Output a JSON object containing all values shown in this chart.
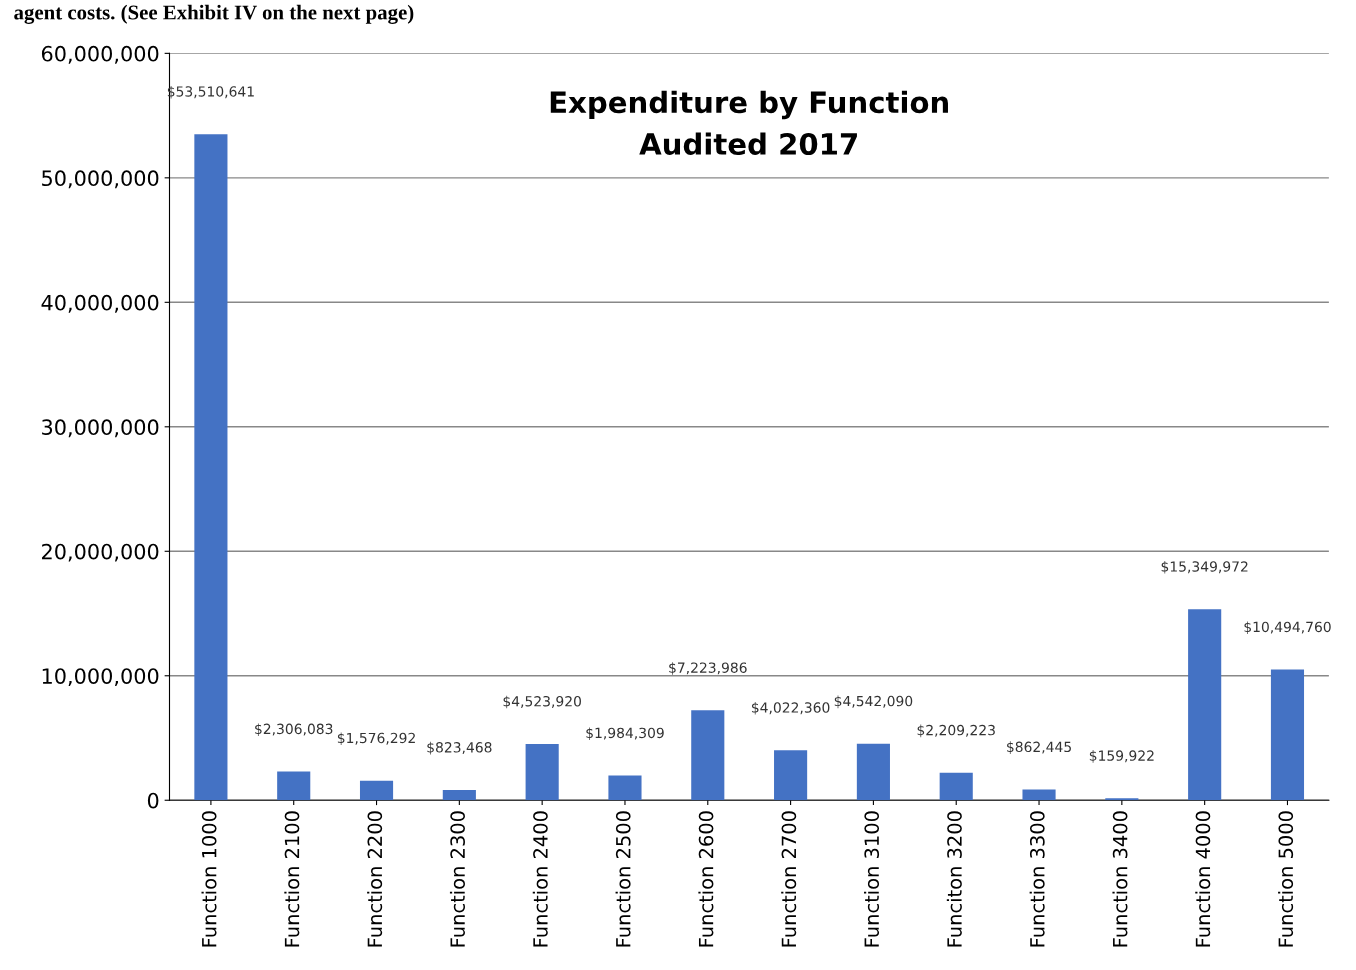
{
  "chart_data": {
    "type": "bar",
    "title": "Expenditure by Function\nAudited 2017",
    "categories": [
      "Function 1000",
      "Function 2100",
      "Function 2200",
      "Function 2300",
      "Function 2400",
      "Function 2500",
      "Function 2600",
      "Function 2700",
      "Function 3100",
      "Funciton 3200",
      "Function 3300",
      "Function 3400",
      "Function 4000",
      "Function 5000"
    ],
    "values": [
      53510641,
      2306083,
      1576292,
      823468,
      4523920,
      1984309,
      7223986,
      4022360,
      4542090,
      2209223,
      862445,
      159922,
      15349972,
      10494760
    ],
    "value_labels": [
      "$53,510,641",
      "$2,306,083",
      "$1,576,292",
      "$823,468",
      "$4,523,920",
      "$1,984,309",
      "$7,223,986",
      "$4,022,360",
      "$4,542,090",
      "$2,209,223",
      "$862,445",
      "$159,922",
      "$15,349,972",
      "$10,494,760"
    ],
    "color": "#4472c4",
    "ylim": [
      0,
      60000000
    ],
    "yticks": [
      {
        "value": 0,
        "label": "0"
      },
      {
        "value": 10000000,
        "label": "10,000,000"
      },
      {
        "value": 20000000,
        "label": "20,000,000"
      },
      {
        "value": 30000000,
        "label": "30,000,000"
      },
      {
        "value": 40000000,
        "label": "40,000,000"
      },
      {
        "value": 50000000,
        "label": "50,000,000"
      },
      {
        "value": 60000000,
        "label": "60,000,000"
      }
    ],
    "grid": "y",
    "annotations": [
      "agent costs. (See Exhibit IV on the next page)"
    ]
  }
}
